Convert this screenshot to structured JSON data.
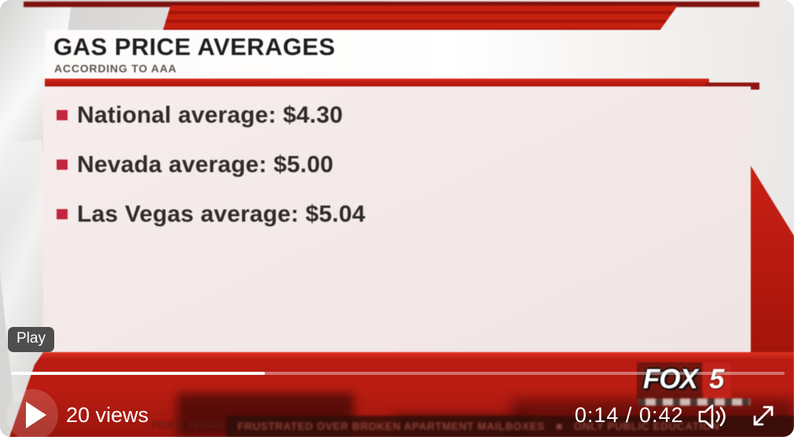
{
  "player": {
    "play_tooltip": "Play",
    "views": "20 views",
    "time": {
      "current": "0:14",
      "duration": "0:42",
      "label": "0:14 / 0:42"
    },
    "progress": {
      "fill_percent": "32.8%"
    },
    "icons": {
      "play": "right-pointing-triangle",
      "volume": "speaker-with-sound-waves",
      "fullscreen": "diagonal-expand-arrows"
    }
  },
  "graphic": {
    "title": "GAS PRICE AVERAGES",
    "subtitle": "ACCORDING TO AAA",
    "items": [
      {
        "text": "National average: $4.30"
      },
      {
        "text": "Nevada average: $5.00"
      },
      {
        "text": "Las Vegas average: $5.04"
      }
    ]
  },
  "branding": {
    "station": "FOX",
    "channel": "5"
  },
  "ticker": {
    "label": "FOX 5 VEGAS",
    "segments": [
      "FRUSTRATED OVER BROKEN APARTMENT MAILBOXES",
      "ONLY PUBLIC EDUCATION"
    ],
    "separator": "■"
  },
  "colors": {
    "accent_red": "#bd1a10",
    "dark_red": "#8e130c",
    "bullet_red": "#c2253e",
    "panel_pink": "#f3e8e8",
    "tooltip_bg": "#464646",
    "chrome_text": "#ffffff"
  }
}
